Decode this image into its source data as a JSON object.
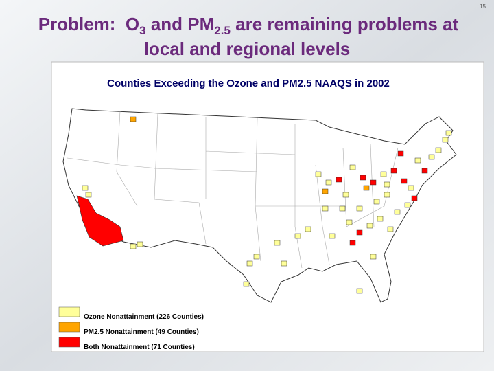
{
  "slide_number": "15",
  "title": {
    "part1": "Problem:  O",
    "sub1": "3",
    "part2": " and PM",
    "sub2": "2.5",
    "part3": " are remaining problems at",
    "line2": "local and regional levels"
  },
  "map": {
    "title": "Counties Exceeding the Ozone and PM2.5 NAAQS in 2002",
    "legend": [
      {
        "label": "Ozone Nonattainment (226 Counties)",
        "color": "#ffff99"
      },
      {
        "label": "PM2.5 Nonattainment (49 Counties)",
        "color": "#ffa500"
      },
      {
        "label": "Both Nonattainment (71 Counties)",
        "color": "#ff0000"
      }
    ]
  }
}
